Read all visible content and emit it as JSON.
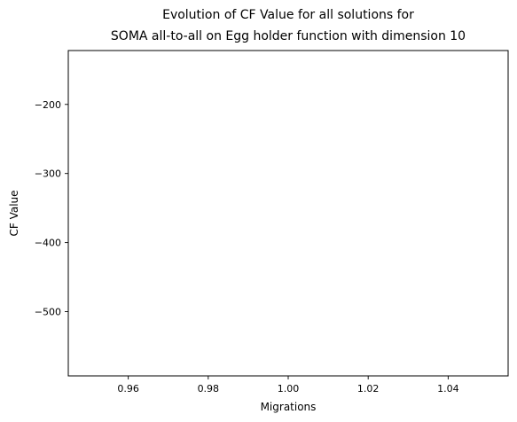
{
  "chart_data": {
    "type": "line",
    "title_lines": [
      "Evolution of CF Value for all solutions for",
      "SOMA all-to-all on Egg holder function with dimension 10"
    ],
    "xlabel": "Migrations",
    "ylabel": "CF Value",
    "xlim": [
      0.945,
      1.055
    ],
    "ylim": [
      -593,
      -122
    ],
    "x_ticks": [
      {
        "value": 0.96,
        "label": "0.96"
      },
      {
        "value": 0.98,
        "label": "0.98"
      },
      {
        "value": 1.0,
        "label": "1.00"
      },
      {
        "value": 1.02,
        "label": "1.02"
      },
      {
        "value": 1.04,
        "label": "1.04"
      }
    ],
    "y_ticks": [
      {
        "value": -200,
        "label": "−200"
      },
      {
        "value": -300,
        "label": "−300"
      },
      {
        "value": -400,
        "label": "−400"
      },
      {
        "value": -500,
        "label": "−500"
      }
    ],
    "grid": false,
    "series": []
  }
}
